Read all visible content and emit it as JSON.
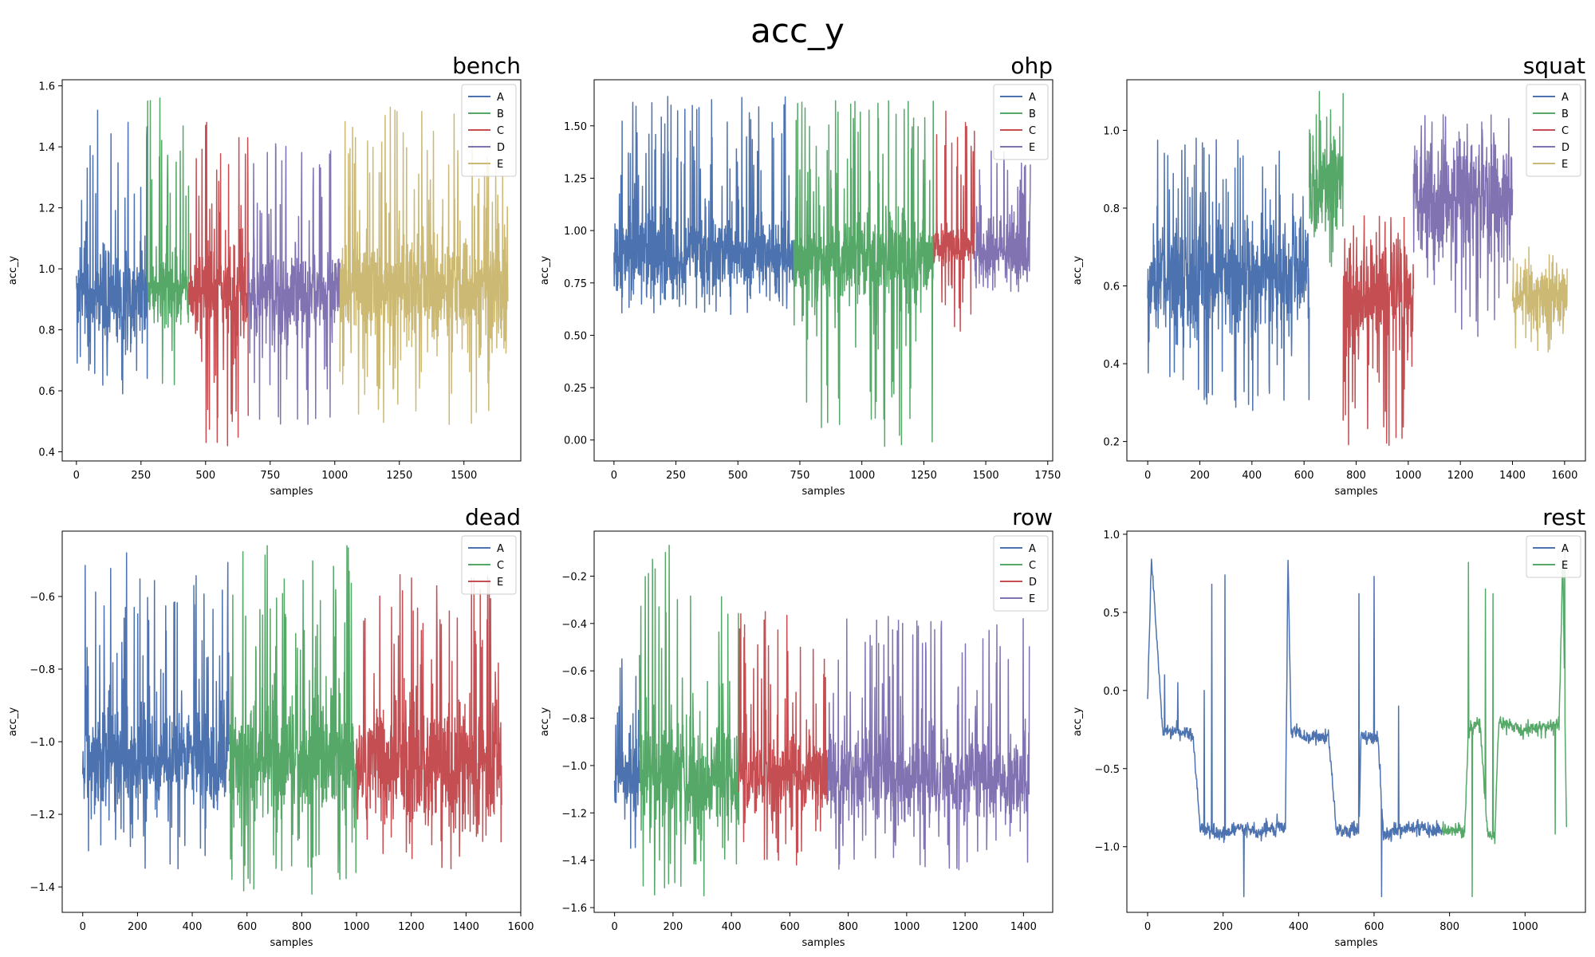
{
  "figure": {
    "suptitle": "acc_y"
  },
  "chart_data": [
    {
      "type": "line",
      "title": "bench",
      "xlabel": "samples",
      "ylabel": "acc_y",
      "xlim": [
        -55,
        1720
      ],
      "ylim": [
        0.37,
        1.62
      ],
      "xticks": [
        0,
        250,
        500,
        750,
        1000,
        1250,
        1500
      ],
      "yticks": [
        0.4,
        0.6,
        0.8,
        1.0,
        1.2,
        1.4,
        1.6
      ],
      "ytick_labels": [
        "0.4",
        "0.6",
        "0.8",
        "1.0",
        "1.2",
        "1.4",
        "1.6"
      ],
      "legend": "top-right",
      "grid": false,
      "series": [
        {
          "name": "A",
          "color": "#4c72b0",
          "x_range": [
            0,
            275
          ],
          "base": 0.9,
          "noise": 0.08,
          "spike_up": 1.52,
          "spike_down": 0.59
        },
        {
          "name": "B",
          "color": "#55a868",
          "x_range": [
            275,
            435
          ],
          "base": 0.93,
          "noise": 0.05,
          "spike_up": 1.56,
          "spike_down": 0.62
        },
        {
          "name": "C",
          "color": "#c44e52",
          "x_range": [
            435,
            665
          ],
          "base": 0.93,
          "noise": 0.06,
          "spike_up": 1.48,
          "spike_down": 0.42
        },
        {
          "name": "D",
          "color": "#8172b2",
          "x_range": [
            665,
            1020
          ],
          "base": 0.92,
          "noise": 0.07,
          "spike_up": 1.41,
          "spike_down": 0.49
        },
        {
          "name": "E",
          "color": "#ccb974",
          "x_range": [
            1020,
            1670
          ],
          "base": 0.93,
          "noise": 0.09,
          "spike_up": 1.53,
          "spike_down": 0.49
        }
      ]
    },
    {
      "type": "line",
      "title": "ohp",
      "xlabel": "samples",
      "ylabel": "acc_y",
      "xlim": [
        -80,
        1770
      ],
      "ylim": [
        -0.1,
        1.72
      ],
      "xticks": [
        0,
        250,
        500,
        750,
        1000,
        1250,
        1500,
        1750
      ],
      "yticks": [
        0.0,
        0.25,
        0.5,
        0.75,
        1.0,
        1.25,
        1.5
      ],
      "ytick_labels": [
        "0.00",
        "0.25",
        "0.50",
        "0.75",
        "1.00",
        "1.25",
        "1.50"
      ],
      "legend": "top-right",
      "grid": false,
      "series": [
        {
          "name": "A",
          "color": "#4c72b0",
          "x_range": [
            0,
            725
          ],
          "base": 0.88,
          "noise": 0.09,
          "spike_up": 1.64,
          "spike_down": 0.6
        },
        {
          "name": "B",
          "color": "#55a868",
          "x_range": [
            725,
            1290
          ],
          "base": 0.86,
          "noise": 0.1,
          "spike_up": 1.62,
          "spike_down": -0.03
        },
        {
          "name": "C",
          "color": "#c44e52",
          "x_range": [
            1290,
            1455
          ],
          "base": 0.93,
          "noise": 0.06,
          "spike_up": 1.57,
          "spike_down": 0.52
        },
        {
          "name": "E",
          "color": "#8172b2",
          "x_range": [
            1455,
            1680
          ],
          "base": 0.9,
          "noise": 0.08,
          "spike_up": 1.38,
          "spike_down": 0.71
        }
      ]
    },
    {
      "type": "line",
      "title": "squat",
      "xlabel": "samples",
      "ylabel": "acc_y",
      "xlim": [
        -80,
        1680
      ],
      "ylim": [
        0.15,
        1.13
      ],
      "xticks": [
        0,
        200,
        400,
        600,
        800,
        1000,
        1200,
        1400,
        1600
      ],
      "yticks": [
        0.2,
        0.4,
        0.6,
        0.8,
        1.0
      ],
      "ytick_labels": [
        "0.2",
        "0.4",
        "0.6",
        "0.8",
        "1.0"
      ],
      "legend": "top-right",
      "grid": false,
      "series": [
        {
          "name": "A",
          "color": "#4c72b0",
          "x_range": [
            0,
            620
          ],
          "base": 0.62,
          "noise": 0.07,
          "spike_up": 0.98,
          "spike_down": 0.28
        },
        {
          "name": "B",
          "color": "#55a868",
          "x_range": [
            620,
            750
          ],
          "base": 0.85,
          "noise": 0.06,
          "spike_up": 1.1,
          "spike_down": 0.65
        },
        {
          "name": "C",
          "color": "#c44e52",
          "x_range": [
            750,
            1020
          ],
          "base": 0.56,
          "noise": 0.07,
          "spike_up": 0.78,
          "spike_down": 0.19
        },
        {
          "name": "D",
          "color": "#8172b2",
          "x_range": [
            1020,
            1400
          ],
          "base": 0.82,
          "noise": 0.07,
          "spike_up": 1.04,
          "spike_down": 0.47
        },
        {
          "name": "E",
          "color": "#ccb974",
          "x_range": [
            1400,
            1610
          ],
          "base": 0.57,
          "noise": 0.04,
          "spike_up": 0.7,
          "spike_down": 0.43
        }
      ]
    },
    {
      "type": "line",
      "title": "dead",
      "xlabel": "samples",
      "ylabel": "acc_y",
      "xlim": [
        -75,
        1600
      ],
      "ylim": [
        -1.47,
        -0.42
      ],
      "xticks": [
        0,
        200,
        400,
        600,
        800,
        1000,
        1200,
        1400,
        1600
      ],
      "yticks": [
        -1.4,
        -1.2,
        -1.0,
        -0.8,
        -0.6
      ],
      "ytick_labels": [
        "−1.4",
        "−1.2",
        "−1.0",
        "−0.8",
        "−0.6"
      ],
      "legend": "top-right",
      "grid": false,
      "series": [
        {
          "name": "A",
          "color": "#4c72b0",
          "x_range": [
            0,
            535
          ],
          "base": -1.05,
          "noise": 0.07,
          "spike_up": -0.48,
          "spike_down": -1.35
        },
        {
          "name": "C",
          "color": "#55a868",
          "x_range": [
            535,
            1000
          ],
          "base": -1.05,
          "noise": 0.08,
          "spike_up": -0.46,
          "spike_down": -1.42
        },
        {
          "name": "E",
          "color": "#c44e52",
          "x_range": [
            1000,
            1530
          ],
          "base": -1.07,
          "noise": 0.08,
          "spike_up": -0.54,
          "spike_down": -1.35
        }
      ]
    },
    {
      "type": "line",
      "title": "row",
      "xlabel": "samples",
      "ylabel": "acc_y",
      "xlim": [
        -70,
        1500
      ],
      "ylim": [
        -1.62,
        -0.01
      ],
      "xticks": [
        0,
        200,
        400,
        600,
        800,
        1000,
        1200,
        1400
      ],
      "yticks": [
        -1.6,
        -1.4,
        -1.2,
        -1.0,
        -0.8,
        -0.6,
        -0.4,
        -0.2
      ],
      "ytick_labels": [
        "−1.6",
        "−1.4",
        "−1.2",
        "−1.0",
        "−0.8",
        "−0.6",
        "−0.4",
        "−0.2"
      ],
      "legend": "top-right",
      "grid": false,
      "series": [
        {
          "name": "A",
          "color": "#4c72b0",
          "x_range": [
            0,
            85
          ],
          "base": -1.05,
          "noise": 0.08,
          "spike_up": -0.55,
          "spike_down": -1.35
        },
        {
          "name": "C",
          "color": "#55a868",
          "x_range": [
            85,
            425
          ],
          "base": -1.05,
          "noise": 0.12,
          "spike_up": -0.07,
          "spike_down": -1.55
        },
        {
          "name": "D",
          "color": "#c44e52",
          "x_range": [
            425,
            730
          ],
          "base": -1.05,
          "noise": 0.09,
          "spike_up": -0.35,
          "spike_down": -1.42
        },
        {
          "name": "E",
          "color": "#8172b2",
          "x_range": [
            730,
            1420
          ],
          "base": -1.05,
          "noise": 0.09,
          "spike_up": -0.37,
          "spike_down": -1.44
        }
      ]
    },
    {
      "type": "line",
      "title": "rest",
      "xlabel": "samples",
      "ylabel": "acc_y",
      "xlim": [
        -55,
        1160
      ],
      "ylim": [
        -1.42,
        1.02
      ],
      "xticks": [
        0,
        200,
        400,
        600,
        800,
        1000
      ],
      "yticks": [
        -1.0,
        -0.5,
        0.0,
        0.5,
        1.0
      ],
      "ytick_labels": [
        "−1.0",
        "−0.5",
        "0.0",
        "0.5",
        "1.0"
      ],
      "legend": "top-right",
      "grid": false,
      "series": [
        {
          "name": "A",
          "color": "#4c72b0",
          "x_range": [
            0,
            780
          ],
          "profile": [
            [
              0,
              -0.07
            ],
            [
              10,
              0.85
            ],
            [
              25,
              0.3
            ],
            [
              40,
              -0.25
            ],
            [
              120,
              -0.28
            ],
            [
              140,
              -0.88
            ],
            [
              200,
              -0.92
            ],
            [
              240,
              -0.88
            ],
            [
              280,
              -0.9
            ],
            [
              300,
              -0.9
            ],
            [
              365,
              -0.88
            ],
            [
              372,
              0.85
            ],
            [
              380,
              -0.25
            ],
            [
              420,
              -0.3
            ],
            [
              480,
              -0.3
            ],
            [
              500,
              -0.9
            ],
            [
              560,
              -0.9
            ],
            [
              565,
              -0.3
            ],
            [
              610,
              -0.3
            ],
            [
              625,
              -0.92
            ],
            [
              700,
              -0.88
            ],
            [
              780,
              -0.9
            ]
          ],
          "noise": 0.04,
          "spikes": [
            [
              45,
              0.1
            ],
            [
              80,
              0.05
            ],
            [
              150,
              0.0
            ],
            [
              170,
              0.68
            ],
            [
              205,
              0.74
            ],
            [
              255,
              -1.32
            ],
            [
              400,
              -0.25
            ],
            [
              560,
              0.62
            ],
            [
              600,
              0.73
            ],
            [
              620,
              -1.32
            ],
            [
              665,
              -0.1
            ]
          ]
        },
        {
          "name": "E",
          "color": "#55a868",
          "x_range": [
            780,
            1110
          ],
          "profile": [
            [
              780,
              -0.9
            ],
            [
              840,
              -0.9
            ],
            [
              850,
              -0.25
            ],
            [
              880,
              -0.2
            ],
            [
              900,
              -0.9
            ],
            [
              920,
              -0.95
            ],
            [
              930,
              -0.2
            ],
            [
              1000,
              -0.25
            ],
            [
              1090,
              -0.22
            ],
            [
              1100,
              0.85
            ],
            [
              1110,
              -0.9
            ]
          ],
          "noise": 0.04,
          "spikes": [
            [
              850,
              0.82
            ],
            [
              860,
              -1.32
            ],
            [
              895,
              0.65
            ],
            [
              915,
              0.62
            ],
            [
              1080,
              -0.92
            ],
            [
              1105,
              0.9
            ]
          ]
        }
      ]
    }
  ]
}
